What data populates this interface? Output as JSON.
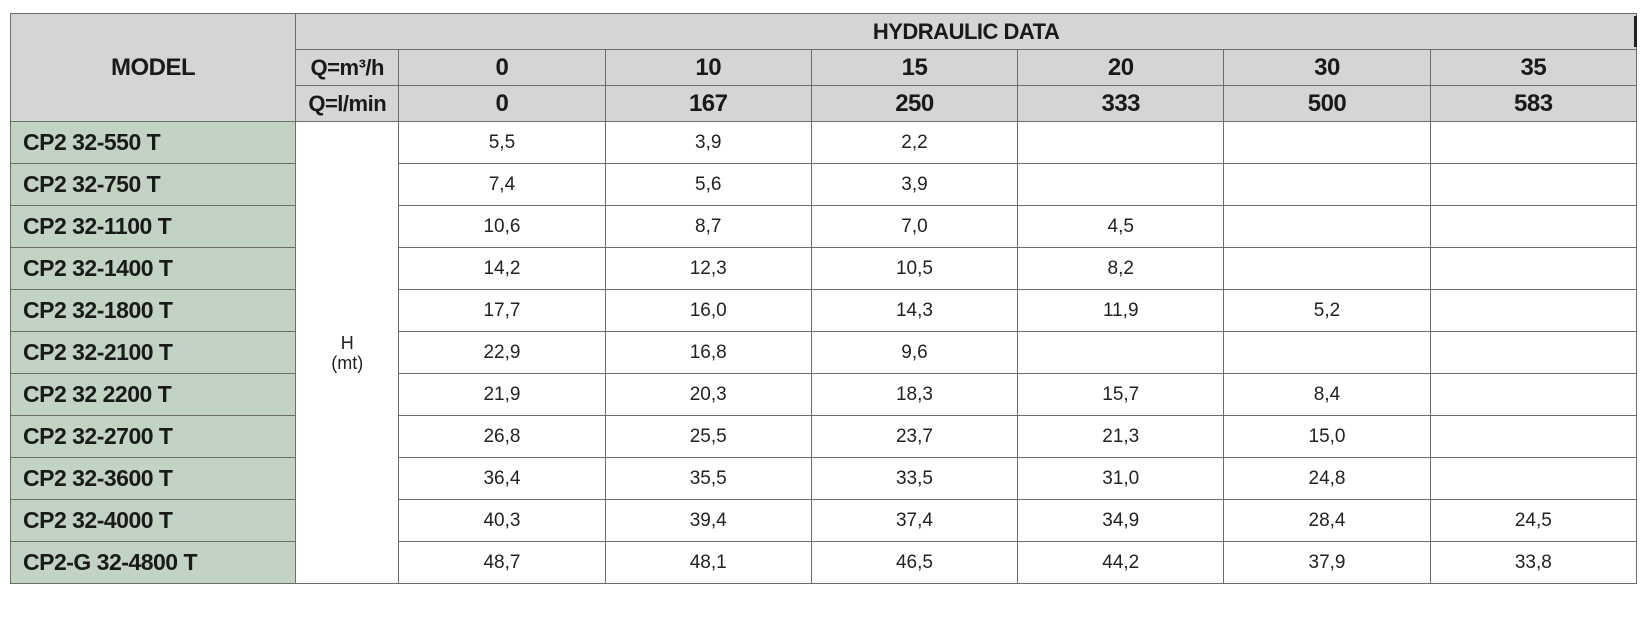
{
  "header": {
    "model_label": "MODEL",
    "group_label": "HYDRAULIC DATA",
    "q_m3h_label": "Q=m³/h",
    "q_lmin_label": "Q=l/min",
    "q_m3h_values": [
      "0",
      "10",
      "15",
      "20",
      "30",
      "35"
    ],
    "q_lmin_values": [
      "0",
      "167",
      "250",
      "333",
      "500",
      "583"
    ]
  },
  "h_label": {
    "line1": "H",
    "line2": "(mt)"
  },
  "rows": [
    {
      "model": "CP2 32-550 T",
      "values": [
        "5,5",
        "3,9",
        "2,2",
        "",
        "",
        ""
      ]
    },
    {
      "model": "CP2 32-750 T",
      "values": [
        "7,4",
        "5,6",
        "3,9",
        "",
        "",
        ""
      ]
    },
    {
      "model": "CP2 32-1100 T",
      "values": [
        "10,6",
        "8,7",
        "7,0",
        "4,5",
        "",
        ""
      ]
    },
    {
      "model": "CP2 32-1400 T",
      "values": [
        "14,2",
        "12,3",
        "10,5",
        "8,2",
        "",
        ""
      ]
    },
    {
      "model": "CP2 32-1800 T",
      "values": [
        "17,7",
        "16,0",
        "14,3",
        "11,9",
        "5,2",
        ""
      ]
    },
    {
      "model": "CP2 32-2100 T",
      "values": [
        "22,9",
        "16,8",
        "9,6",
        "",
        "",
        ""
      ]
    },
    {
      "model": "CP2 32 2200 T",
      "values": [
        "21,9",
        "20,3",
        "18,3",
        "15,7",
        "8,4",
        ""
      ]
    },
    {
      "model": "CP2 32-2700 T",
      "values": [
        "26,8",
        "25,5",
        "23,7",
        "21,3",
        "15,0",
        ""
      ]
    },
    {
      "model": "CP2 32-3600 T",
      "values": [
        "36,4",
        "35,5",
        "33,5",
        "31,0",
        "24,8",
        ""
      ]
    },
    {
      "model": "CP2 32-4000 T",
      "values": [
        "40,3",
        "39,4",
        "37,4",
        "34,9",
        "28,4",
        "24,5"
      ]
    },
    {
      "model": "CP2-G 32-4800 T",
      "values": [
        "48,7",
        "48,1",
        "46,5",
        "44,2",
        "37,9",
        "33,8"
      ]
    }
  ]
}
